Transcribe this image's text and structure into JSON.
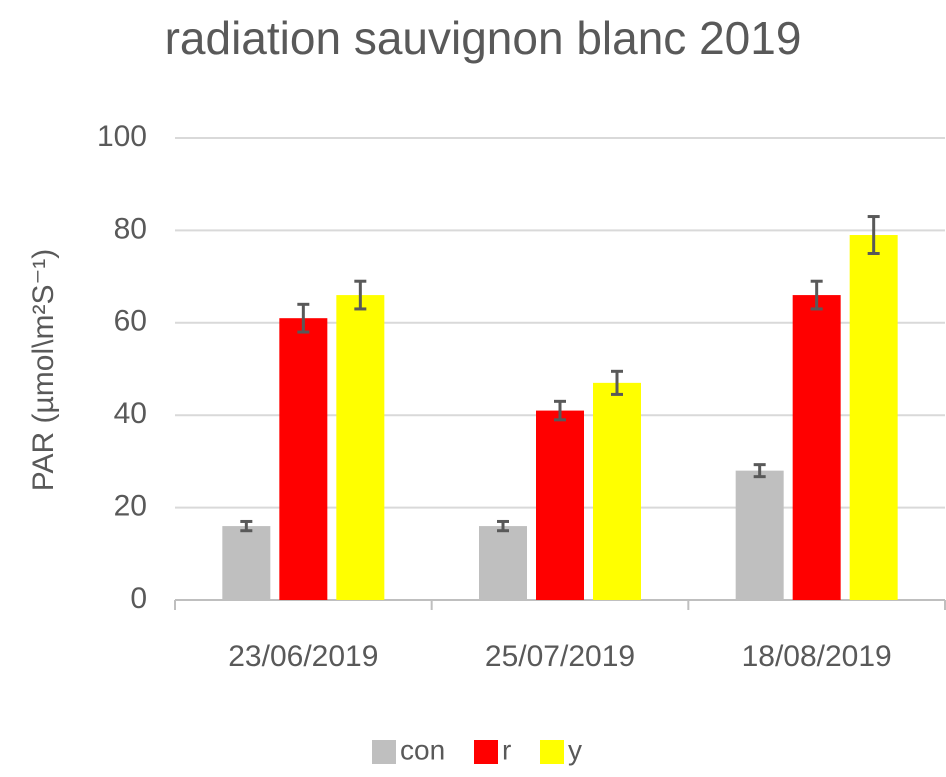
{
  "chart_data": {
    "type": "bar",
    "title": "radiation sauvignon blanc 2019",
    "y_label": "PAR (µmol\\m²S⁻¹)",
    "categories": [
      "23/06/2019",
      "25/07/2019",
      "18/08/2019"
    ],
    "series": [
      {
        "name": "con",
        "color": "#bfbfbf",
        "values": [
          16,
          16,
          28
        ],
        "errors": [
          1,
          1,
          1.3
        ]
      },
      {
        "name": "r",
        "color": "#ff0000",
        "values": [
          61,
          41,
          66
        ],
        "errors": [
          3,
          2,
          3
        ]
      },
      {
        "name": "y",
        "color": "#ffff00",
        "values": [
          66,
          47,
          79
        ],
        "errors": [
          3,
          2.5,
          4
        ]
      }
    ],
    "ylim": [
      0,
      100
    ],
    "yticks": [
      0,
      20,
      40,
      60,
      80,
      100
    ],
    "grid": true,
    "legend": "bottom"
  }
}
